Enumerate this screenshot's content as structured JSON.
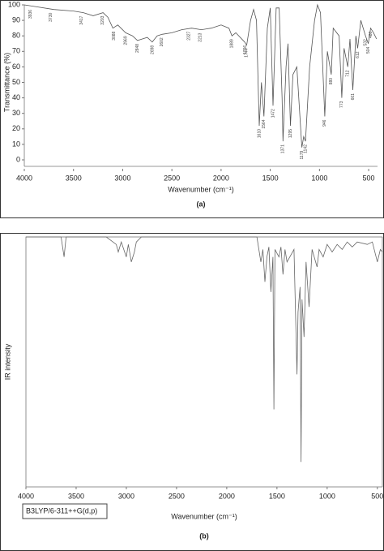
{
  "chart_data": [
    {
      "type": "line",
      "caption": "(a)",
      "x_label": "Wavenumber (cm⁻¹)",
      "y_label": "Transmittance (%)",
      "color": "#555555",
      "xlim": [
        4000,
        410
      ],
      "xticks": [
        4000,
        3500,
        3000,
        2500,
        2000,
        1500,
        1000,
        500
      ],
      "ylim": [
        0,
        100
      ],
      "yticks": [
        0,
        10,
        20,
        30,
        40,
        50,
        60,
        70,
        80,
        90,
        100
      ],
      "x": [
        4000,
        3900,
        3700,
        3500,
        3400,
        3300,
        3200,
        3150,
        3100,
        3050,
        2970,
        2900,
        2850,
        2800,
        2750,
        2700,
        2650,
        2600,
        2500,
        2400,
        2300,
        2200,
        2100,
        2000,
        1920,
        1890,
        1850,
        1760,
        1740,
        1700,
        1670,
        1640,
        1612,
        1590,
        1564,
        1530,
        1500,
        1472,
        1440,
        1410,
        1380,
        1371,
        1340,
        1320,
        1295,
        1270,
        1230,
        1179,
        1160,
        1142,
        1100,
        1050,
        1020,
        990,
        946,
        920,
        880,
        860,
        800,
        773,
        750,
        712,
        690,
        661,
        630,
        612,
        580,
        532,
        504,
        480,
        450,
        420
      ],
      "values": [
        100,
        99,
        97,
        96,
        95,
        93,
        95,
        92,
        85,
        87,
        82,
        80,
        77,
        78,
        79,
        76,
        80,
        81,
        82,
        84,
        85,
        84,
        85,
        87,
        85,
        80,
        82,
        76,
        74,
        90,
        97,
        90,
        22,
        50,
        28,
        85,
        98,
        35,
        98,
        98,
        40,
        12,
        60,
        75,
        22,
        55,
        60,
        8,
        15,
        12,
        60,
        90,
        100,
        95,
        28,
        70,
        55,
        85,
        80,
        40,
        72,
        60,
        78,
        45,
        80,
        72,
        90,
        80,
        75,
        85,
        82,
        78
      ],
      "annotations": [
        {
          "text": "3936",
          "x": 3936,
          "y": 99
        },
        {
          "text": "3730",
          "x": 3730,
          "y": 97
        },
        {
          "text": "3417",
          "x": 3417,
          "y": 95
        },
        {
          "text": "3203",
          "x": 3203,
          "y": 95
        },
        {
          "text": "3088",
          "x": 3088,
          "y": 85
        },
        {
          "text": "2969",
          "x": 2969,
          "y": 82
        },
        {
          "text": "2848",
          "x": 2848,
          "y": 77
        },
        {
          "text": "2698",
          "x": 2698,
          "y": 76
        },
        {
          "text": "2602",
          "x": 2602,
          "y": 81
        },
        {
          "text": "2327",
          "x": 2327,
          "y": 85
        },
        {
          "text": "2213",
          "x": 2213,
          "y": 84
        },
        {
          "text": "1889",
          "x": 1889,
          "y": 80
        },
        {
          "text": "1756",
          "x": 1756,
          "y": 76
        },
        {
          "text": "1744",
          "x": 1744,
          "y": 74
        },
        {
          "text": "1610",
          "x": 1610,
          "y": 22
        },
        {
          "text": "1564",
          "x": 1564,
          "y": 28
        },
        {
          "text": "1472",
          "x": 1472,
          "y": 35
        },
        {
          "text": "1371",
          "x": 1371,
          "y": 12
        },
        {
          "text": "1295",
          "x": 1295,
          "y": 22
        },
        {
          "text": "1179",
          "x": 1179,
          "y": 8
        },
        {
          "text": "1142",
          "x": 1142,
          "y": 12
        },
        {
          "text": "946",
          "x": 946,
          "y": 28
        },
        {
          "text": "880",
          "x": 880,
          "y": 55
        },
        {
          "text": "773",
          "x": 773,
          "y": 40
        },
        {
          "text": "712",
          "x": 712,
          "y": 60
        },
        {
          "text": "661",
          "x": 661,
          "y": 45
        },
        {
          "text": "612",
          "x": 612,
          "y": 72
        },
        {
          "text": "532",
          "x": 532,
          "y": 80
        },
        {
          "text": "504",
          "x": 504,
          "y": 75
        },
        {
          "text": "480",
          "x": 480,
          "y": 85
        }
      ]
    },
    {
      "type": "line",
      "caption": "(b)",
      "x_label": "Wavenumber (cm⁻¹)",
      "y_label": "IR intensity",
      "method_label": "B3LYP/6-311++G(d,p)",
      "color": "#666666",
      "xlim": [
        4000,
        450
      ],
      "xticks": [
        4000,
        3500,
        3000,
        2500,
        2000,
        1500,
        1000,
        500
      ],
      "ylim": [
        100,
        0
      ],
      "x": [
        4000,
        3650,
        3620,
        3600,
        3200,
        3100,
        3080,
        3050,
        3000,
        2980,
        2950,
        2920,
        2900,
        2850,
        1700,
        1660,
        1640,
        1620,
        1600,
        1580,
        1560,
        1540,
        1530,
        1520,
        1480,
        1460,
        1440,
        1420,
        1400,
        1330,
        1300,
        1290,
        1270,
        1260,
        1250,
        1230,
        1210,
        1180,
        1150,
        1100,
        1080,
        1040,
        1000,
        950,
        900,
        850,
        800,
        750,
        700,
        600,
        550,
        500,
        470,
        450
      ],
      "values": [
        0,
        0,
        8,
        0,
        0,
        3,
        6,
        2,
        8,
        3,
        10,
        6,
        2,
        0,
        0,
        10,
        5,
        18,
        8,
        4,
        22,
        8,
        69,
        5,
        8,
        4,
        15,
        5,
        10,
        5,
        55,
        30,
        20,
        90,
        25,
        40,
        10,
        28,
        5,
        12,
        5,
        8,
        3,
        6,
        3,
        5,
        2,
        4,
        2,
        3,
        2,
        10,
        5,
        6
      ]
    }
  ]
}
